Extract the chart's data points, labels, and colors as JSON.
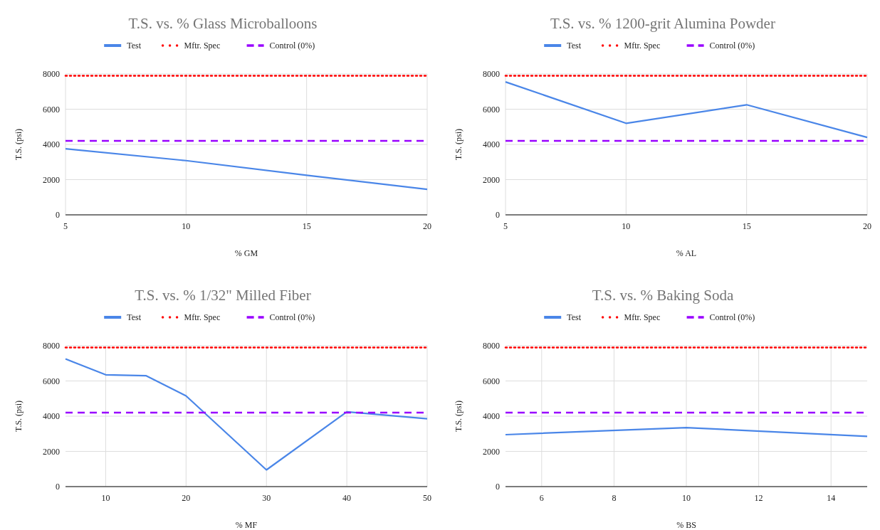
{
  "chart_data": [
    {
      "type": "line",
      "title": "T.S. vs. % Glass Microballoons",
      "xlabel": "% GM",
      "ylabel": "T.S. (psi)",
      "xlim": [
        5,
        20
      ],
      "xticks": [
        5,
        10,
        15,
        20
      ],
      "ylim": [
        0,
        8000
      ],
      "yticks": [
        0,
        2000,
        4000,
        6000,
        8000
      ],
      "grid": true,
      "legend": "top",
      "series": [
        {
          "name": "Test",
          "color": "#4a86e8",
          "x": [
            5,
            10,
            15,
            20
          ],
          "values": [
            3750,
            3080,
            2250,
            1450
          ],
          "line_style": "solid"
        },
        {
          "name": "Mftr. Spec",
          "color": "#ff0000",
          "x": [
            5,
            20
          ],
          "values": [
            7900,
            7900
          ],
          "line_style": "dotted"
        },
        {
          "name": "Control (0%)",
          "color": "#9900ff",
          "x": [
            5,
            20
          ],
          "values": [
            4200,
            4200
          ],
          "line_style": "dashed"
        }
      ]
    },
    {
      "type": "line",
      "title": "T.S. vs. % 1200-grit Alumina Powder",
      "xlabel": "% AL",
      "ylabel": "T.S. (psi)",
      "xlim": [
        5,
        20
      ],
      "xticks": [
        5,
        10,
        15,
        20
      ],
      "ylim": [
        0,
        8000
      ],
      "yticks": [
        0,
        2000,
        4000,
        6000,
        8000
      ],
      "grid": true,
      "legend": "top",
      "series": [
        {
          "name": "Test",
          "color": "#4a86e8",
          "x": [
            5,
            10,
            15,
            20
          ],
          "values": [
            7550,
            5200,
            6250,
            4400
          ],
          "line_style": "solid"
        },
        {
          "name": "Mftr. Spec",
          "color": "#ff0000",
          "x": [
            5,
            20
          ],
          "values": [
            7900,
            7900
          ],
          "line_style": "dotted"
        },
        {
          "name": "Control (0%)",
          "color": "#9900ff",
          "x": [
            5,
            20
          ],
          "values": [
            4200,
            4200
          ],
          "line_style": "dashed"
        }
      ]
    },
    {
      "type": "line",
      "title": "T.S. vs. % 1/32\" Milled Fiber",
      "xlabel": "% MF",
      "ylabel": "T.S. (psi)",
      "xlim": [
        5,
        50
      ],
      "xticks": [
        10,
        20,
        30,
        40,
        50
      ],
      "ylim": [
        0,
        8000
      ],
      "yticks": [
        0,
        2000,
        4000,
        6000,
        8000
      ],
      "grid": true,
      "legend": "top",
      "series": [
        {
          "name": "Test",
          "color": "#4a86e8",
          "x": [
            5,
            10,
            15,
            20,
            30,
            40,
            50
          ],
          "values": [
            7250,
            6350,
            6300,
            5150,
            950,
            4250,
            3850
          ],
          "line_style": "solid"
        },
        {
          "name": "Mftr. Spec",
          "color": "#ff0000",
          "x": [
            5,
            50
          ],
          "values": [
            7900,
            7900
          ],
          "line_style": "dotted"
        },
        {
          "name": "Control (0%)",
          "color": "#9900ff",
          "x": [
            5,
            50
          ],
          "values": [
            4200,
            4200
          ],
          "line_style": "dashed"
        }
      ]
    },
    {
      "type": "line",
      "title": "T.S. vs. % Baking Soda",
      "xlabel": "% BS",
      "ylabel": "T.S. (psi)",
      "xlim": [
        5,
        15
      ],
      "xticks": [
        6,
        8,
        10,
        12,
        14
      ],
      "ylim": [
        0,
        8000
      ],
      "yticks": [
        0,
        2000,
        4000,
        6000,
        8000
      ],
      "grid": true,
      "legend": "top",
      "series": [
        {
          "name": "Test",
          "color": "#4a86e8",
          "x": [
            5,
            10,
            15
          ],
          "values": [
            2950,
            3350,
            2850
          ],
          "line_style": "solid"
        },
        {
          "name": "Mftr. Spec",
          "color": "#ff0000",
          "x": [
            5,
            15
          ],
          "values": [
            7900,
            7900
          ],
          "line_style": "dotted"
        },
        {
          "name": "Control (0%)",
          "color": "#9900ff",
          "x": [
            5,
            15
          ],
          "values": [
            4200,
            4200
          ],
          "line_style": "dashed"
        }
      ]
    }
  ]
}
